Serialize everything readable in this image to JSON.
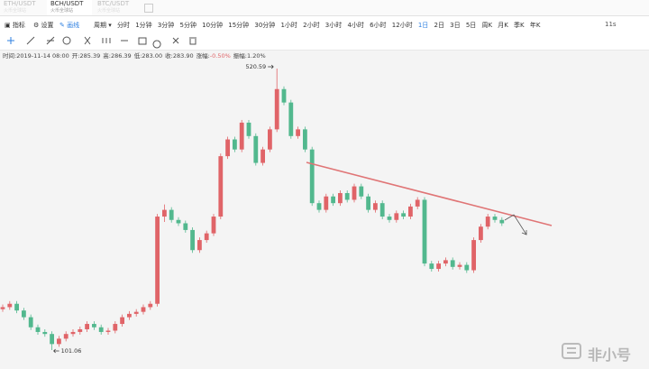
{
  "tabs": [
    {
      "name": "ETH/USDT",
      "sub": "火币全球站"
    },
    {
      "name": "BCH/USDT",
      "sub": "火币全球站"
    },
    {
      "name": "BTC/USDT",
      "sub": "火币全球站"
    }
  ],
  "active_tab_index": 1,
  "toolbar": {
    "indicator": "指标",
    "settings": "设置",
    "draw": "画线",
    "period_label": "周期"
  },
  "periods": [
    "分时",
    "1分钟",
    "3分钟",
    "5分钟",
    "10分钟",
    "15分钟",
    "30分钟",
    "1小时",
    "2小时",
    "3小时",
    "4小时",
    "6小时",
    "12小时",
    "1日",
    "2日",
    "3日",
    "5日",
    "周K",
    "月K",
    "季K",
    "年K"
  ],
  "active_period_index": 13,
  "refresh": "11s",
  "info": [
    {
      "label": "时间:",
      "value": "2019-11-14 08:00"
    },
    {
      "label": "开:",
      "value": "285.39"
    },
    {
      "label": "高:",
      "value": "286.39"
    },
    {
      "label": "低:",
      "value": "283.00"
    },
    {
      "label": "收:",
      "value": "283.90"
    },
    {
      "label": "涨幅:",
      "value": "-0.50%"
    },
    {
      "label": "振幅:",
      "value": "1.20%"
    }
  ],
  "watermark": "非小号",
  "chart_data": {
    "type": "candlestick",
    "up_color": "#e06468",
    "down_color": "#52b88e",
    "max_label": 520.59,
    "min_label": 101.06,
    "candles": [
      [
        162,
        169,
        158,
        165
      ],
      [
        165,
        174,
        161,
        170
      ],
      [
        170,
        174,
        156,
        160
      ],
      [
        160,
        164,
        146,
        150
      ],
      [
        150,
        154,
        131,
        135
      ],
      [
        135,
        139,
        124,
        128
      ],
      [
        128,
        132,
        121,
        125
      ],
      [
        125,
        129,
        101.06,
        110
      ],
      [
        110,
        122,
        106,
        118
      ],
      [
        118,
        129,
        114,
        125
      ],
      [
        125,
        132,
        121,
        128
      ],
      [
        128,
        136,
        124,
        132
      ],
      [
        132,
        144,
        128,
        140
      ],
      [
        140,
        144,
        131,
        135
      ],
      [
        135,
        139,
        124,
        128
      ],
      [
        128,
        134,
        124,
        130
      ],
      [
        130,
        144,
        126,
        140
      ],
      [
        140,
        154,
        136,
        150
      ],
      [
        150,
        159,
        146,
        155
      ],
      [
        155,
        162,
        151,
        158
      ],
      [
        158,
        169,
        154,
        165
      ],
      [
        165,
        174,
        161,
        170
      ],
      [
        170,
        304,
        166,
        300
      ],
      [
        300,
        318,
        292,
        310
      ],
      [
        310,
        314,
        291,
        295
      ],
      [
        295,
        299,
        286,
        290
      ],
      [
        290,
        294,
        276,
        280
      ],
      [
        280,
        284,
        246,
        250
      ],
      [
        250,
        269,
        246,
        265
      ],
      [
        265,
        279,
        261,
        275
      ],
      [
        275,
        304,
        271,
        300
      ],
      [
        300,
        394,
        296,
        390
      ],
      [
        390,
        419,
        386,
        415
      ],
      [
        415,
        419,
        396,
        400
      ],
      [
        400,
        444,
        396,
        440
      ],
      [
        440,
        444,
        416,
        420
      ],
      [
        420,
        424,
        376,
        380
      ],
      [
        380,
        404,
        376,
        400
      ],
      [
        400,
        434,
        396,
        430
      ],
      [
        430,
        520.59,
        426,
        490
      ],
      [
        490,
        494,
        466,
        470
      ],
      [
        470,
        474,
        416,
        420
      ],
      [
        420,
        434,
        416,
        430
      ],
      [
        430,
        434,
        396,
        400
      ],
      [
        400,
        404,
        316,
        320
      ],
      [
        320,
        324,
        306,
        310
      ],
      [
        310,
        334,
        306,
        330
      ],
      [
        330,
        334,
        316,
        320
      ],
      [
        320,
        339,
        316,
        335
      ],
      [
        335,
        339,
        321,
        325
      ],
      [
        325,
        349,
        321,
        345
      ],
      [
        345,
        349,
        326,
        330
      ],
      [
        330,
        334,
        306,
        310
      ],
      [
        310,
        324,
        306,
        320
      ],
      [
        320,
        324,
        296,
        300
      ],
      [
        300,
        304,
        291,
        295
      ],
      [
        295,
        309,
        291,
        305
      ],
      [
        305,
        309,
        296,
        300
      ],
      [
        300,
        319,
        296,
        315
      ],
      [
        315,
        329,
        311,
        325
      ],
      [
        325,
        329,
        226,
        230
      ],
      [
        230,
        234,
        218,
        222
      ],
      [
        222,
        234,
        218,
        230
      ],
      [
        230,
        239,
        226,
        235
      ],
      [
        235,
        239,
        221,
        225
      ],
      [
        225,
        232,
        221,
        228
      ],
      [
        228,
        232,
        216,
        220
      ],
      [
        220,
        269,
        216,
        265
      ],
      [
        265,
        289,
        261,
        285
      ],
      [
        285,
        304,
        281,
        300
      ],
      [
        300,
        304,
        291,
        295
      ],
      [
        295,
        299,
        286,
        290
      ]
    ]
  }
}
